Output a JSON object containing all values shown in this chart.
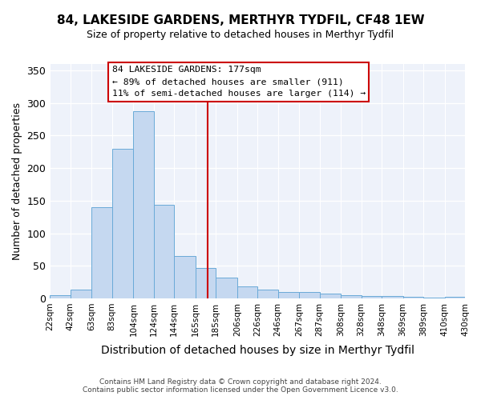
{
  "title": "84, LAKESIDE GARDENS, MERTHYR TYDFIL, CF48 1EW",
  "subtitle": "Size of property relative to detached houses in Merthyr Tydfil",
  "xlabel": "Distribution of detached houses by size in Merthyr Tydfil",
  "ylabel": "Number of detached properties",
  "bar_color": "#c5d8f0",
  "bar_edgecolor": "#6aaad8",
  "fig_background_color": "#ffffff",
  "ax_background_color": "#eef2fa",
  "grid_color": "#ffffff",
  "vline_x": 177,
  "vline_color": "#cc0000",
  "annotation_title": "84 LAKESIDE GARDENS: 177sqm",
  "annotation_line1": "← 89% of detached houses are smaller (911)",
  "annotation_line2": "11% of semi-detached houses are larger (114) →",
  "annotation_box_edgecolor": "#cc0000",
  "annotation_box_facecolor": "#ffffff",
  "bin_edges": [
    22,
    42,
    63,
    83,
    104,
    124,
    144,
    165,
    185,
    206,
    226,
    246,
    267,
    287,
    308,
    328,
    348,
    369,
    389,
    410,
    430
  ],
  "bin_labels": [
    "22sqm",
    "42sqm",
    "63sqm",
    "83sqm",
    "104sqm",
    "124sqm",
    "144sqm",
    "165sqm",
    "185sqm",
    "206sqm",
    "226sqm",
    "246sqm",
    "267sqm",
    "287sqm",
    "308sqm",
    "328sqm",
    "348sqm",
    "369sqm",
    "389sqm",
    "410sqm",
    "430sqm"
  ],
  "bar_heights": [
    5,
    14,
    140,
    230,
    287,
    144,
    65,
    46,
    32,
    18,
    13,
    10,
    10,
    7,
    5,
    4,
    3,
    2,
    1,
    2
  ],
  "ylim": [
    0,
    360
  ],
  "yticks": [
    0,
    50,
    100,
    150,
    200,
    250,
    300,
    350
  ],
  "footer_line1": "Contains HM Land Registry data © Crown copyright and database right 2024.",
  "footer_line2": "Contains public sector information licensed under the Open Government Licence v3.0."
}
